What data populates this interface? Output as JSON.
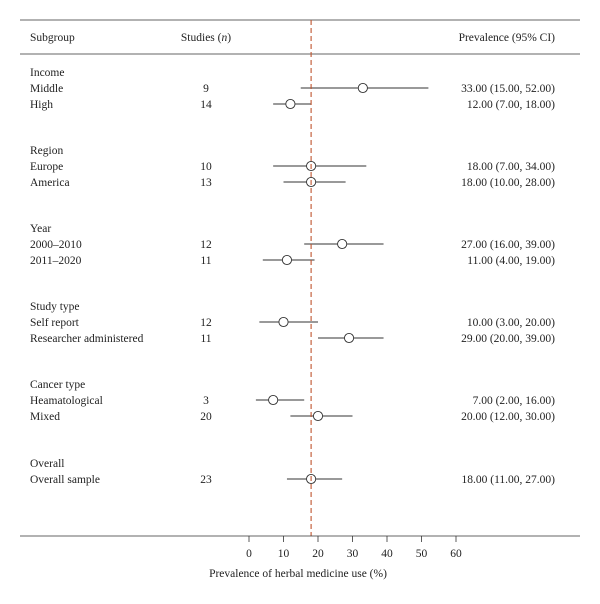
{
  "chart_data": {
    "type": "forest",
    "header": {
      "subgroup": "Subgroup",
      "studies": "Studies (n)",
      "studies_prefix": "Studies (",
      "studies_n": "n",
      "studies_suffix": ")",
      "prevalence": "Prevalence (95% CI)"
    },
    "xlabel": "Prevalence of herbal medicine use (%)",
    "xlim": [
      0,
      60
    ],
    "xticks": [
      0,
      10,
      20,
      30,
      40,
      50,
      60
    ],
    "xtick_labels": [
      "0",
      "10",
      "20",
      "30",
      "40",
      "50",
      "60"
    ],
    "reference_line": 18,
    "groups": [
      {
        "title": "Income",
        "rows": [
          {
            "label": "Middle",
            "studies": "9",
            "est": 33,
            "lo": 15,
            "hi": 52,
            "text": "33.00 (15.00, 52.00)"
          },
          {
            "label": "High",
            "studies": "14",
            "est": 12,
            "lo": 7,
            "hi": 18,
            "text": "12.00 (7.00, 18.00)"
          }
        ]
      },
      {
        "title": "Region",
        "rows": [
          {
            "label": "Europe",
            "studies": "10",
            "est": 18,
            "lo": 7,
            "hi": 34,
            "text": "18.00 (7.00, 34.00)"
          },
          {
            "label": "America",
            "studies": "13",
            "est": 18,
            "lo": 10,
            "hi": 28,
            "text": "18.00 (10.00, 28.00)"
          }
        ]
      },
      {
        "title": "Year",
        "rows": [
          {
            "label": "2000–2010",
            "studies": "12",
            "est": 27,
            "lo": 16,
            "hi": 39,
            "text": "27.00 (16.00, 39.00)"
          },
          {
            "label": "2011–2020",
            "studies": "11",
            "est": 11,
            "lo": 4,
            "hi": 19,
            "text": "11.00 (4.00, 19.00)"
          }
        ]
      },
      {
        "title": "Study type",
        "rows": [
          {
            "label": "Self report",
            "studies": "12",
            "est": 10,
            "lo": 3,
            "hi": 20,
            "text": "10.00 (3.00, 20.00)"
          },
          {
            "label": "Researcher administered",
            "studies": "11",
            "est": 29,
            "lo": 20,
            "hi": 39,
            "text": "29.00 (20.00, 39.00)"
          }
        ]
      },
      {
        "title": "Cancer type",
        "rows": [
          {
            "label": "Heamatological",
            "studies": "3",
            "est": 7,
            "lo": 2,
            "hi": 16,
            "text": "7.00 (2.00, 16.00)"
          },
          {
            "label": "Mixed",
            "studies": "20",
            "est": 20,
            "lo": 12,
            "hi": 30,
            "text": "20.00 (12.00, 30.00)"
          }
        ]
      },
      {
        "title": "Overall",
        "rows": [
          {
            "label": "Overall sample",
            "studies": "23",
            "est": 18,
            "lo": 11,
            "hi": 27,
            "text": "18.00 (11.00, 27.00)"
          }
        ]
      }
    ]
  }
}
